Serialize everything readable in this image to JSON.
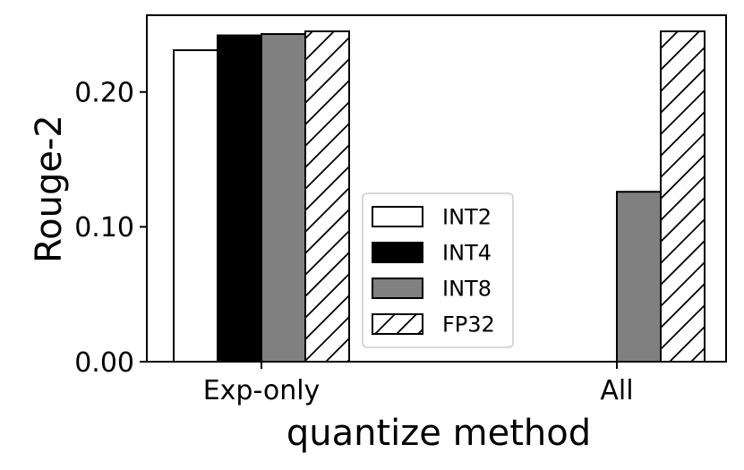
{
  "chart_data": {
    "type": "bar",
    "title": "",
    "xlabel": "quantize method",
    "ylabel": "Rouge-2",
    "categories": [
      "Exp-only",
      "All"
    ],
    "ylim": [
      0,
      0.245
    ],
    "yticks": [
      0.0,
      0.1,
      0.2
    ],
    "ytick_labels": [
      "0.00",
      "0.10",
      "0.20"
    ],
    "grid": false,
    "legend_position": "center",
    "series": [
      {
        "name": "INT2",
        "fill": "#ffffff",
        "hatch": false,
        "values": [
          0.231,
          0.0
        ]
      },
      {
        "name": "INT4",
        "fill": "#000000",
        "hatch": false,
        "values": [
          0.242,
          0.0
        ]
      },
      {
        "name": "INT8",
        "fill": "#808080",
        "hatch": false,
        "values": [
          0.243,
          0.126
        ]
      },
      {
        "name": "FP32",
        "fill": "#ffffff",
        "hatch": true,
        "values": [
          0.245,
          0.245
        ]
      }
    ]
  }
}
